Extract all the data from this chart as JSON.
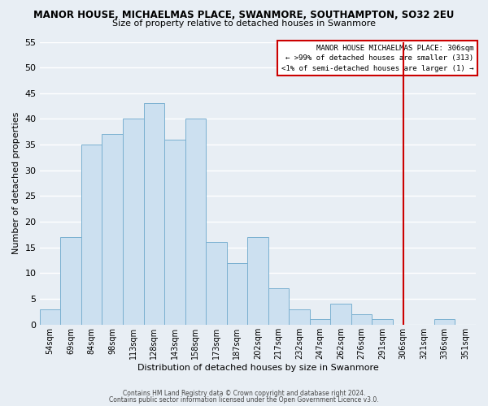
{
  "title": "MANOR HOUSE, MICHAELMAS PLACE, SWANMORE, SOUTHAMPTON, SO32 2EU",
  "subtitle": "Size of property relative to detached houses in Swanmore",
  "xlabel": "Distribution of detached houses by size in Swanmore",
  "ylabel": "Number of detached properties",
  "bar_color": "#cce0f0",
  "bar_edge_color": "#7ab0d0",
  "background_color": "#e8eef4",
  "grid_color": "#ffffff",
  "bin_labels": [
    "54sqm",
    "69sqm",
    "84sqm",
    "98sqm",
    "113sqm",
    "128sqm",
    "143sqm",
    "158sqm",
    "173sqm",
    "187sqm",
    "202sqm",
    "217sqm",
    "232sqm",
    "247sqm",
    "262sqm",
    "276sqm",
    "291sqm",
    "306sqm",
    "321sqm",
    "336sqm",
    "351sqm"
  ],
  "bar_heights": [
    3,
    17,
    35,
    37,
    40,
    43,
    36,
    40,
    16,
    12,
    17,
    7,
    3,
    1,
    4,
    2,
    1,
    0,
    0,
    1,
    0
  ],
  "ylim": [
    0,
    55
  ],
  "yticks": [
    0,
    5,
    10,
    15,
    20,
    25,
    30,
    35,
    40,
    45,
    50,
    55
  ],
  "vline_color": "#cc0000",
  "annotation_title": "MANOR HOUSE MICHAELMAS PLACE: 306sqm",
  "annotation_line1": "← >99% of detached houses are smaller (313)",
  "annotation_line2": "<1% of semi-detached houses are larger (1) →",
  "footer_line1": "Contains HM Land Registry data © Crown copyright and database right 2024.",
  "footer_line2": "Contains public sector information licensed under the Open Government Licence v3.0."
}
